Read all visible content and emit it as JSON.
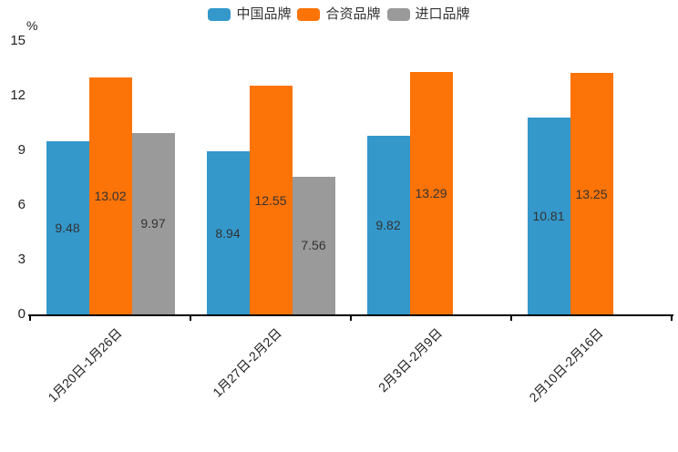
{
  "chart_data": {
    "type": "bar",
    "title": "",
    "unit_label": "%",
    "categories": [
      "1月20日-1月26日",
      "1月27日-2月2日",
      "2月3日-2月9日",
      "2月10日-2月16日"
    ],
    "series": [
      {
        "id": "chinese-brand",
        "name": "中国品牌",
        "color": "#3498cb",
        "values": [
          9.48,
          8.94,
          9.82,
          10.81
        ],
        "labels": [
          "9.48",
          "8.94",
          "9.82",
          "10.81"
        ]
      },
      {
        "id": "joint-venture-brand",
        "name": "合资品牌",
        "color": "#fc7307",
        "values": [
          13.02,
          12.55,
          13.29,
          13.25
        ],
        "labels": [
          "13.02",
          "12.55",
          "13.29",
          "13.25"
        ]
      },
      {
        "id": "imported-brand",
        "name": "进口品牌",
        "color": "#9a9a9a",
        "values": [
          9.97,
          7.56,
          null,
          null
        ],
        "labels": [
          "9.97",
          "7.56",
          null,
          null
        ]
      }
    ],
    "yticks": [
      0,
      3,
      6,
      9,
      12,
      15
    ],
    "ylim": [
      0,
      15
    ],
    "legend_position": "top",
    "grid": false,
    "colors": {
      "background": "#ffffff",
      "axis": "#000000",
      "axis_text": "#222222",
      "bar_label_text": "#333333",
      "legend_text": "#333333"
    }
  }
}
